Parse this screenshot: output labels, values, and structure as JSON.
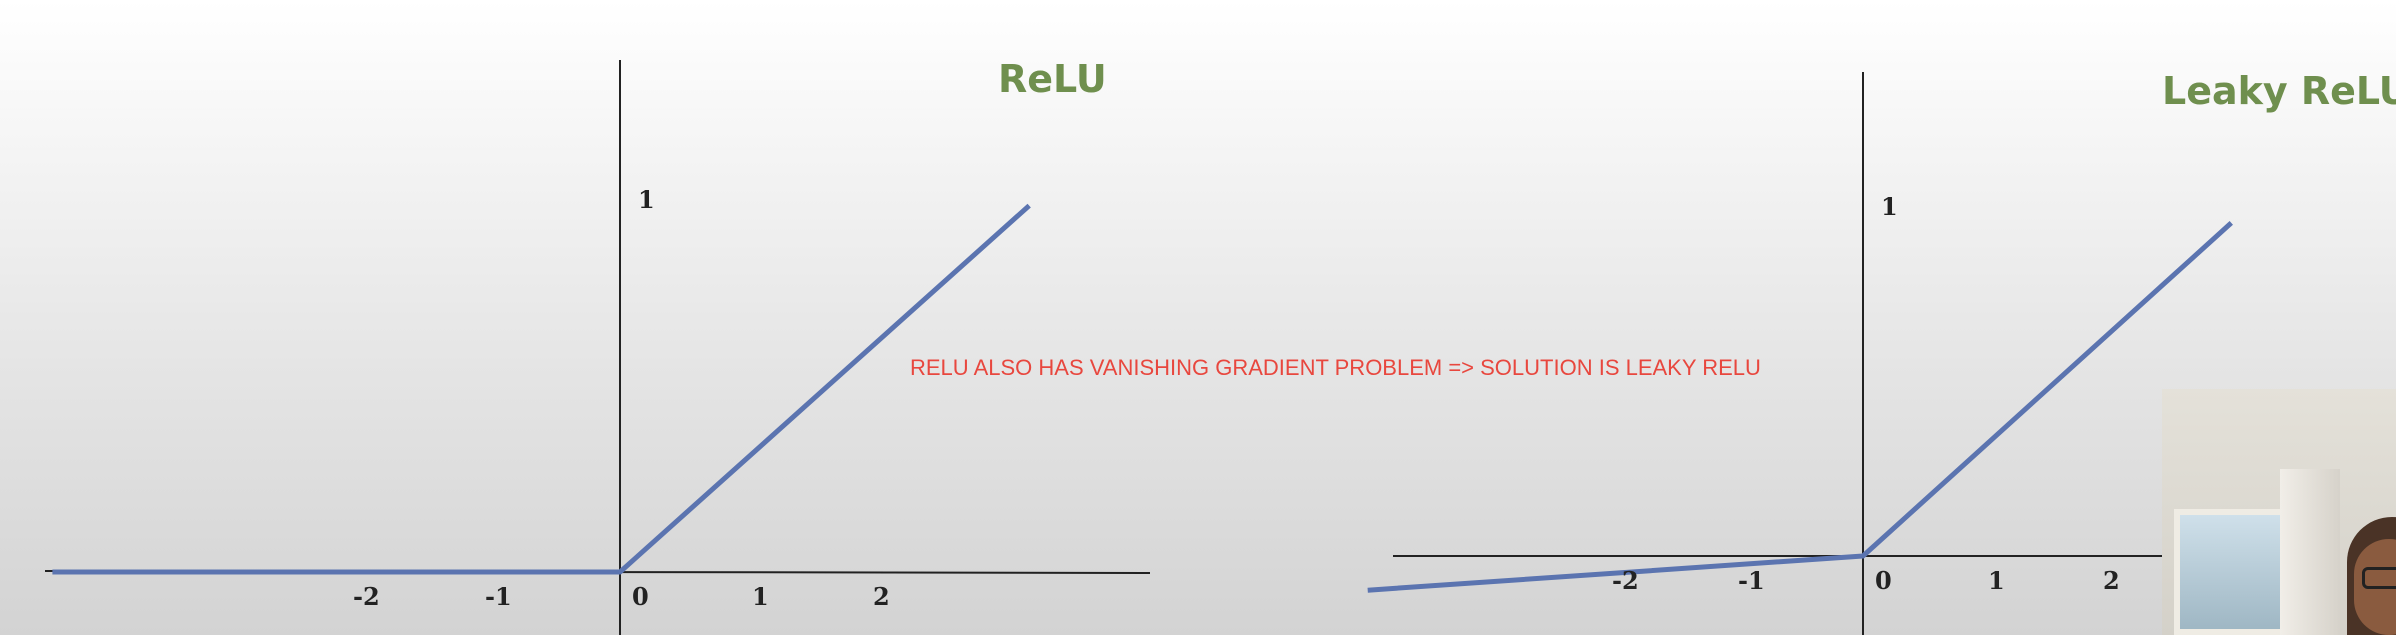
{
  "annotation": "RELU ALSO HAS VANISHING GRADIENT PROBLEM => SOLUTION IS LEAKY RELU",
  "colors": {
    "curve": "#5b74b0",
    "title": "#6f8f4e",
    "note": "#e8473e",
    "axis": "#222222"
  },
  "chart_data": [
    {
      "type": "line",
      "title": "ReLU",
      "xlabel": "",
      "ylabel": "",
      "x_ticks": [
        "-2",
        "-1",
        "0",
        "1",
        "2"
      ],
      "y_ticks": [
        "1"
      ],
      "xlim": [
        -4.4,
        4.3
      ],
      "ylim": [
        -0.5,
        3.3
      ],
      "grid": false,
      "series": [
        {
          "x": [
            -4.3,
            0,
            3.1
          ],
          "y": [
            0,
            0,
            2.84
          ]
        }
      ]
    },
    {
      "type": "line",
      "title": "Leaky ReLU",
      "xlabel": "",
      "ylabel": "",
      "x_ticks": [
        "-2",
        "-1",
        "0",
        "1",
        "2"
      ],
      "y_ticks": [
        "1"
      ],
      "xlim": [
        -3.9,
        3.0
      ],
      "ylim": [
        -0.6,
        3.6
      ],
      "grid": false,
      "series": [
        {
          "x": [
            -3.9,
            0,
            2.9
          ],
          "y": [
            -0.28,
            0,
            2.73
          ]
        }
      ]
    }
  ]
}
